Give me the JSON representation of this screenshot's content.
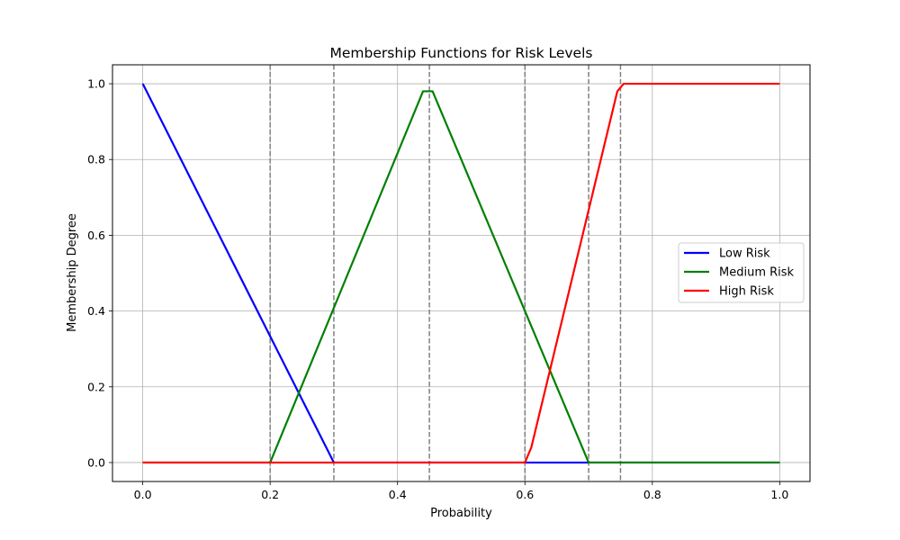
{
  "chart_data": {
    "type": "line",
    "title": "Membership Functions for Risk Levels",
    "xlabel": "Probability",
    "ylabel": "Membership Degree",
    "xlim": [
      -0.0475,
      1.0475
    ],
    "ylim": [
      -0.05,
      1.05
    ],
    "xticks": [
      0.0,
      0.2,
      0.4,
      0.6,
      0.8,
      1.0
    ],
    "xtick_labels": [
      "0.0",
      "0.2",
      "0.4",
      "0.6",
      "0.8",
      "1.0"
    ],
    "yticks": [
      0.0,
      0.2,
      0.4,
      0.6,
      0.8,
      1.0
    ],
    "ytick_labels": [
      "0.0",
      "0.2",
      "0.4",
      "0.6",
      "0.8",
      "1.0"
    ],
    "grid": true,
    "legend_position": "center-right",
    "vlines": {
      "x": [
        0.2,
        0.3,
        0.45,
        0.6,
        0.7,
        0.75
      ],
      "color": "#808080",
      "style": "dashed"
    },
    "series": [
      {
        "name": "Low Risk",
        "color": "#0000ff",
        "points": [
          [
            0.0,
            1.0
          ],
          [
            0.3,
            0.0
          ],
          [
            1.0,
            0.0
          ]
        ]
      },
      {
        "name": "Medium Risk",
        "color": "#008000",
        "points": [
          [
            0.0,
            0.0
          ],
          [
            0.195,
            0.0
          ],
          [
            0.2,
            0.0
          ],
          [
            0.44,
            0.98
          ],
          [
            0.45,
            0.98
          ],
          [
            0.455,
            0.98
          ],
          [
            0.7,
            0.0
          ],
          [
            1.0,
            0.0
          ]
        ]
      },
      {
        "name": "High Risk",
        "color": "#ff0000",
        "points": [
          [
            0.0,
            0.0
          ],
          [
            0.6,
            0.0
          ],
          [
            0.61,
            0.04
          ],
          [
            0.745,
            0.98
          ],
          [
            0.755,
            1.0
          ],
          [
            1.0,
            1.0
          ]
        ]
      }
    ]
  }
}
